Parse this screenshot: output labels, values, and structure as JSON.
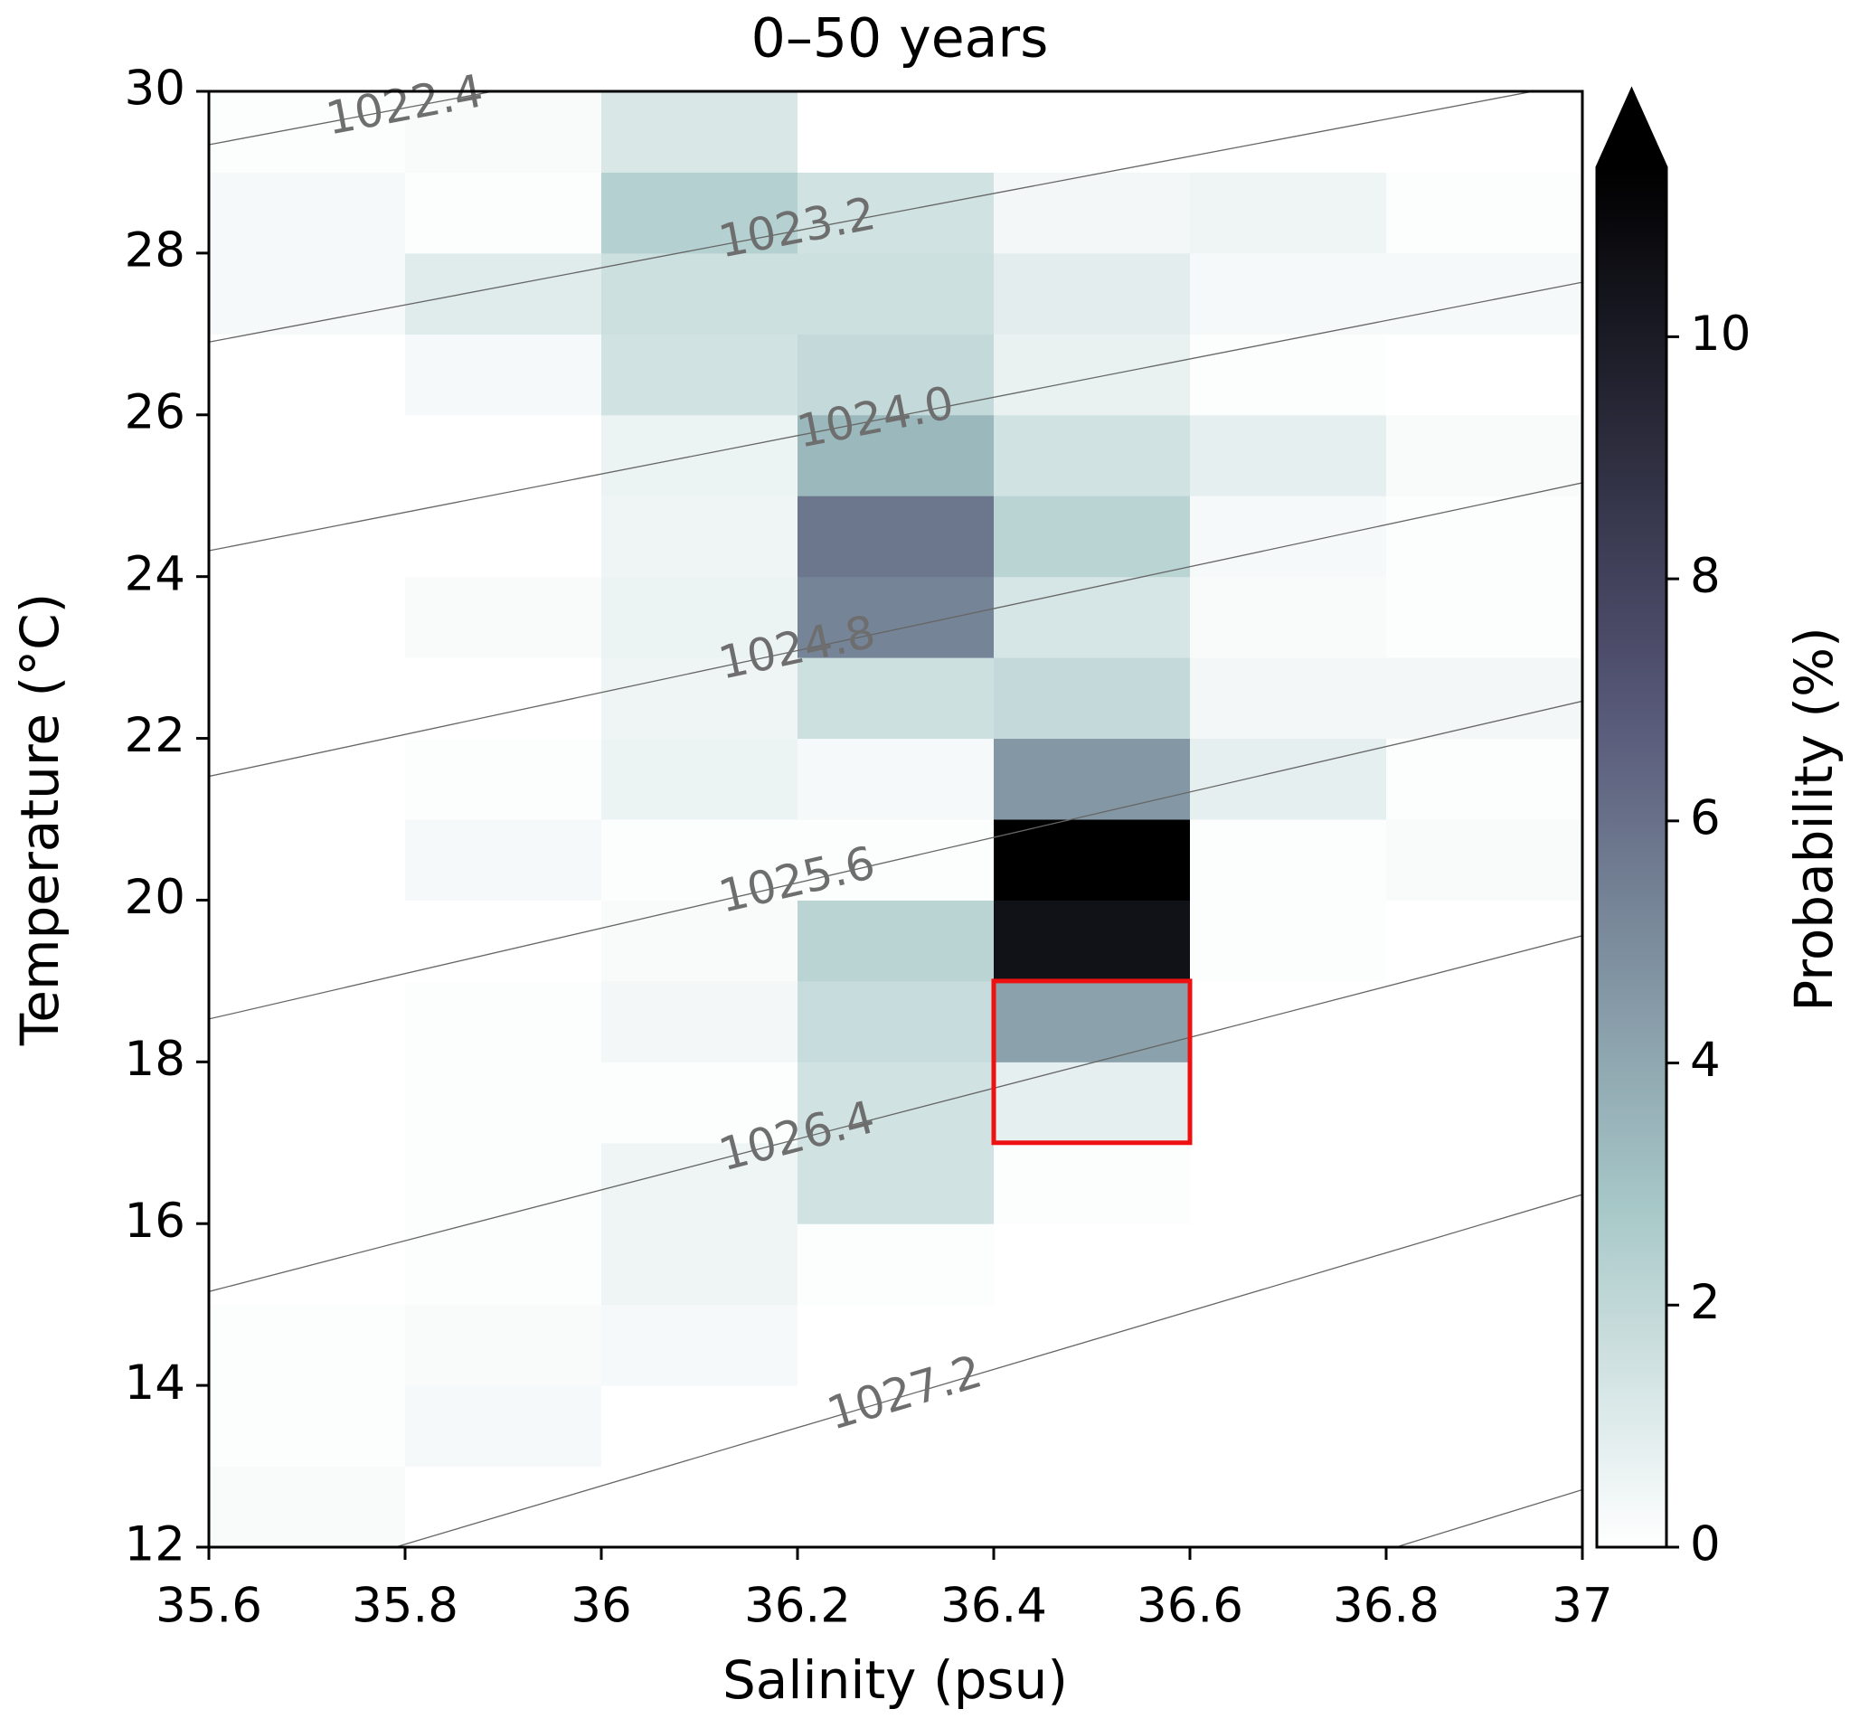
{
  "chart_data": {
    "type": "heatmap",
    "title": "0–50 years",
    "xlabel": "Salinity (psu)",
    "ylabel": "Temperature (°C)",
    "colorbar_label": "Probability (%)",
    "colormap": "bone_r",
    "xbins": [
      35.6,
      35.8,
      36.0,
      36.2,
      36.4,
      36.6,
      36.8,
      37.0
    ],
    "ybins": [
      12,
      13,
      14,
      15,
      16,
      17,
      18,
      19,
      20,
      21,
      22,
      23,
      24,
      25,
      26,
      27,
      28,
      29,
      30
    ],
    "values": [
      [
        0.2,
        0,
        0,
        0,
        0,
        0,
        0
      ],
      [
        0.1,
        0.3,
        0,
        0,
        0,
        0,
        0
      ],
      [
        0.1,
        0.2,
        0.3,
        0,
        0,
        0,
        0
      ],
      [
        0,
        0.1,
        0.5,
        0.1,
        0,
        0,
        0
      ],
      [
        0,
        0.1,
        0.5,
        1.5,
        0.1,
        0,
        0
      ],
      [
        0,
        0.1,
        0.1,
        1.5,
        0.8,
        0,
        0
      ],
      [
        0,
        0.1,
        0.4,
        1.8,
        4.2,
        0,
        0
      ],
      [
        0,
        0,
        0.2,
        2.2,
        10.5,
        0.1,
        0
      ],
      [
        0,
        0.3,
        0.1,
        0.1,
        11.4,
        0.1,
        0.2
      ],
      [
        0,
        0.1,
        0.6,
        0.3,
        4.6,
        0.8,
        0.1
      ],
      [
        0,
        0,
        0.5,
        1.6,
        1.9,
        0.4,
        0.4
      ],
      [
        0,
        0.2,
        0.6,
        5.3,
        1.3,
        0.2,
        0.1
      ],
      [
        0,
        0,
        0.5,
        5.8,
        2.2,
        0.3,
        0.1
      ],
      [
        0,
        0,
        0.6,
        3.4,
        1.5,
        0.8,
        0.2
      ],
      [
        0,
        0.3,
        1.5,
        1.9,
        0.7,
        0.1,
        0
      ],
      [
        0.3,
        1.0,
        1.6,
        1.6,
        0.9,
        0.3,
        0.3
      ],
      [
        0.3,
        0.1,
        2.4,
        1.5,
        0.4,
        0.5,
        0.1
      ],
      [
        0.1,
        0.2,
        1.2,
        0,
        0,
        0,
        0
      ]
    ],
    "xlim": [
      35.6,
      37
    ],
    "ylim": [
      12,
      30
    ],
    "zlim": [
      0,
      11.4
    ],
    "xticks": [
      35.6,
      35.8,
      36,
      36.2,
      36.4,
      36.6,
      36.8,
      37
    ],
    "yticks": [
      12,
      14,
      16,
      18,
      20,
      22,
      24,
      26,
      28,
      30
    ],
    "zticks": [
      0,
      2,
      4,
      6,
      8,
      10
    ],
    "contours": [
      {
        "label": "1022.4",
        "x": [
          35.6,
          35.89
        ],
        "y": [
          29.34,
          30
        ]
      },
      {
        "label": "1023.2",
        "x": [
          35.6,
          36.95
        ],
        "y": [
          26.9,
          30
        ]
      },
      {
        "label": "1024.0",
        "x": [
          35.6,
          37
        ],
        "y": [
          24.32,
          27.64
        ]
      },
      {
        "label": "1024.8",
        "x": [
          35.6,
          37
        ],
        "y": [
          21.53,
          25.16
        ]
      },
      {
        "label": "1025.6",
        "x": [
          35.6,
          37
        ],
        "y": [
          18.53,
          22.46
        ]
      },
      {
        "label": "1026.4",
        "x": [
          35.6,
          37
        ],
        "y": [
          15.16,
          19.56
        ]
      },
      {
        "label": "1027.2",
        "x": [
          35.79,
          37
        ],
        "y": [
          12,
          16.36
        ]
      },
      {
        "x": [
          36.81,
          37
        ],
        "y": [
          12,
          12.71
        ]
      }
    ],
    "highlight": {
      "x": [
        36.4,
        36.6
      ],
      "y": [
        17,
        19
      ],
      "color": "#ee1111"
    }
  }
}
